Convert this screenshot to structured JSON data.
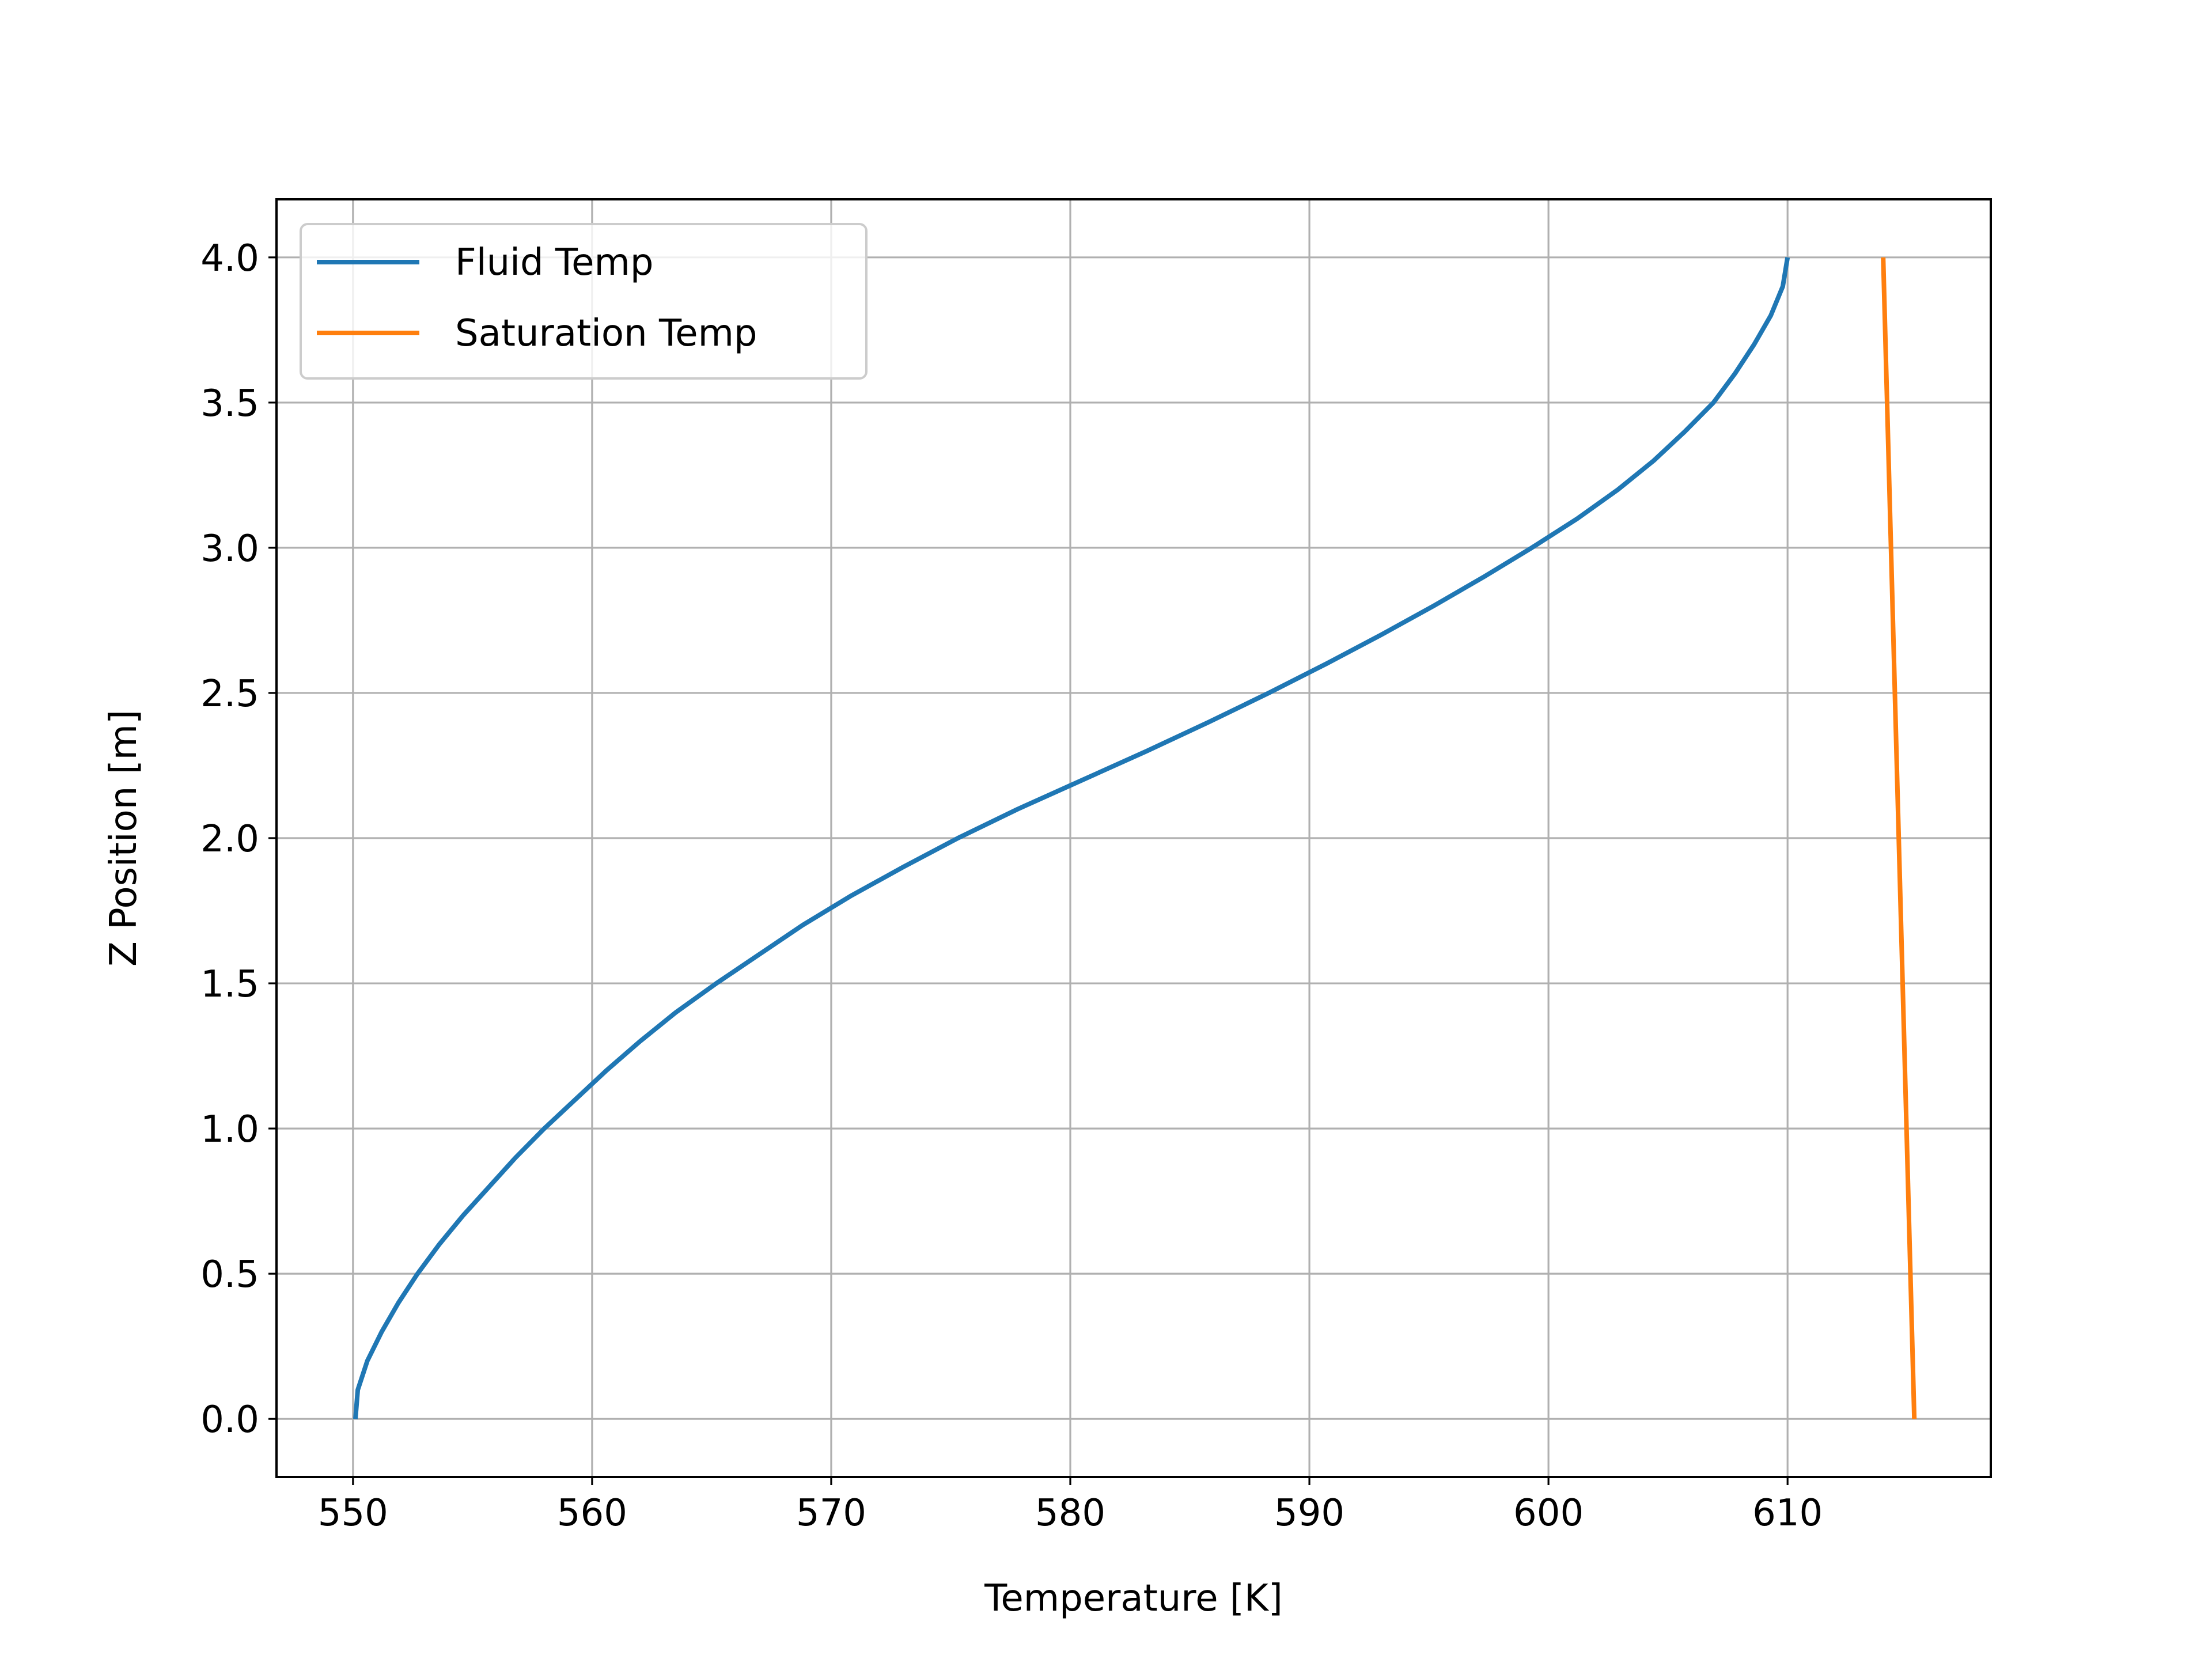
{
  "chart_data": {
    "type": "line",
    "title": "",
    "xlabel": "Temperature [K]",
    "ylabel": "Z Position [m]",
    "xlim": [
      546.8,
      618.5
    ],
    "ylim": [
      -0.2,
      4.2
    ],
    "xticks": [
      550,
      560,
      570,
      580,
      590,
      600,
      610
    ],
    "xtick_labels": [
      "550",
      "560",
      "570",
      "580",
      "590",
      "600",
      "610"
    ],
    "yticks": [
      0.0,
      0.5,
      1.0,
      1.5,
      2.0,
      2.5,
      3.0,
      3.5,
      4.0
    ],
    "ytick_labels": [
      "0.0",
      "0.5",
      "1.0",
      "1.5",
      "2.0",
      "2.5",
      "3.0",
      "3.5",
      "4.0"
    ],
    "grid": true,
    "legend_position": "top-left",
    "series": [
      {
        "name": "Fluid Temp",
        "color": "#1f77b4",
        "points": [
          [
            550.1,
            0.0
          ],
          [
            550.2,
            0.1
          ],
          [
            550.6,
            0.2
          ],
          [
            551.2,
            0.3
          ],
          [
            551.9,
            0.4
          ],
          [
            552.7,
            0.5
          ],
          [
            553.6,
            0.6
          ],
          [
            554.6,
            0.7
          ],
          [
            555.7,
            0.8
          ],
          [
            556.8,
            0.9
          ],
          [
            558.0,
            1.0
          ],
          [
            559.3,
            1.1
          ],
          [
            560.6,
            1.2
          ],
          [
            562.0,
            1.3
          ],
          [
            563.5,
            1.4
          ],
          [
            565.2,
            1.5
          ],
          [
            567.0,
            1.6
          ],
          [
            568.8,
            1.7
          ],
          [
            570.8,
            1.8
          ],
          [
            573.0,
            1.9
          ],
          [
            575.3,
            2.0
          ],
          [
            577.8,
            2.1
          ],
          [
            580.5,
            2.2
          ],
          [
            583.2,
            2.3
          ],
          [
            585.8,
            2.4
          ],
          [
            588.3,
            2.5
          ],
          [
            590.7,
            2.6
          ],
          [
            593.0,
            2.7
          ],
          [
            595.2,
            2.8
          ],
          [
            597.3,
            2.9
          ],
          [
            599.3,
            3.0
          ],
          [
            601.2,
            3.1
          ],
          [
            602.9,
            3.2
          ],
          [
            604.4,
            3.3
          ],
          [
            605.7,
            3.4
          ],
          [
            606.9,
            3.5
          ],
          [
            607.8,
            3.6
          ],
          [
            608.6,
            3.7
          ],
          [
            609.3,
            3.8
          ],
          [
            609.8,
            3.9
          ],
          [
            610.0,
            4.0
          ]
        ]
      },
      {
        "name": "Saturation Temp",
        "color": "#ff7f0e",
        "points": [
          [
            615.3,
            0.0
          ],
          [
            614.0,
            4.0
          ]
        ]
      }
    ]
  }
}
